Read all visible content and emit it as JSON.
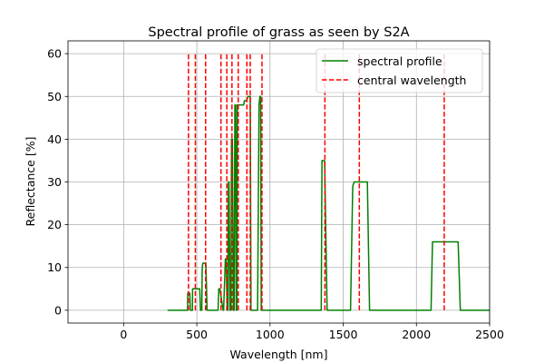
{
  "chart_data": {
    "type": "line",
    "title": "Spectral profile of grass as seen by S2A",
    "xlabel": "Wavelength [nm]",
    "ylabel": "Reflectance [%]",
    "xlim": [
      -380,
      2500
    ],
    "ylim": [
      -3,
      63
    ],
    "xticks": [
      0,
      500,
      1000,
      1500,
      2000,
      2500
    ],
    "yticks": [
      0,
      10,
      20,
      30,
      40,
      50,
      60
    ],
    "grid": true,
    "legend": {
      "placement": "top-right",
      "entries": [
        "spectral profile",
        "central wavelength"
      ]
    },
    "colors": {
      "profile": "#008000",
      "central": "#ff0000"
    },
    "series": [
      {
        "name": "spectral profile",
        "style": "solid",
        "x": [
          300,
          437,
          438,
          452,
          456,
          470,
          471,
          520,
          525,
          534,
          537,
          541,
          543,
          562,
          570,
          578,
          588,
          645,
          650,
          653,
          657,
          680,
          683,
          695,
          700,
          708,
          713,
          716,
          720,
          727,
          733,
          737,
          743,
          750,
          755,
          760,
          765,
          769,
          773,
          776,
          778,
          787,
          790,
          820,
          825,
          835,
          840,
          850,
          855,
          865,
          870,
          885,
          900,
          915,
          925,
          931,
          936,
          940,
          947,
          960,
          1350,
          1355,
          1362,
          1370,
          1373,
          1390,
          1400,
          1550,
          1565,
          1575,
          1650,
          1665,
          1680,
          2100,
          2110,
          2125,
          2265,
          2285,
          2300,
          2500
        ],
        "y": [
          0,
          0,
          4,
          4,
          0,
          0,
          5,
          5,
          0,
          0,
          10,
          11,
          11,
          11,
          0,
          0,
          0,
          0,
          5,
          5,
          5,
          0,
          0,
          12,
          12,
          0,
          0,
          30,
          30,
          0,
          0,
          40,
          40,
          0,
          0,
          48,
          48,
          0,
          0,
          48,
          48,
          48,
          48,
          48,
          49,
          49,
          49,
          50,
          50,
          50,
          0,
          0,
          0,
          0,
          48,
          50,
          50,
          0,
          0,
          0,
          0,
          35,
          35,
          35,
          35,
          0,
          0,
          0,
          29,
          30,
          30,
          30,
          0,
          0,
          16,
          16,
          16,
          16,
          0,
          0
        ]
      },
      {
        "name": "central wavelength",
        "style": "dashed",
        "x": [
          443,
          490,
          560,
          665,
          705,
          740,
          783,
          842,
          865,
          945,
          1375,
          1610,
          2190
        ],
        "y_range": [
          0,
          60
        ]
      }
    ]
  }
}
